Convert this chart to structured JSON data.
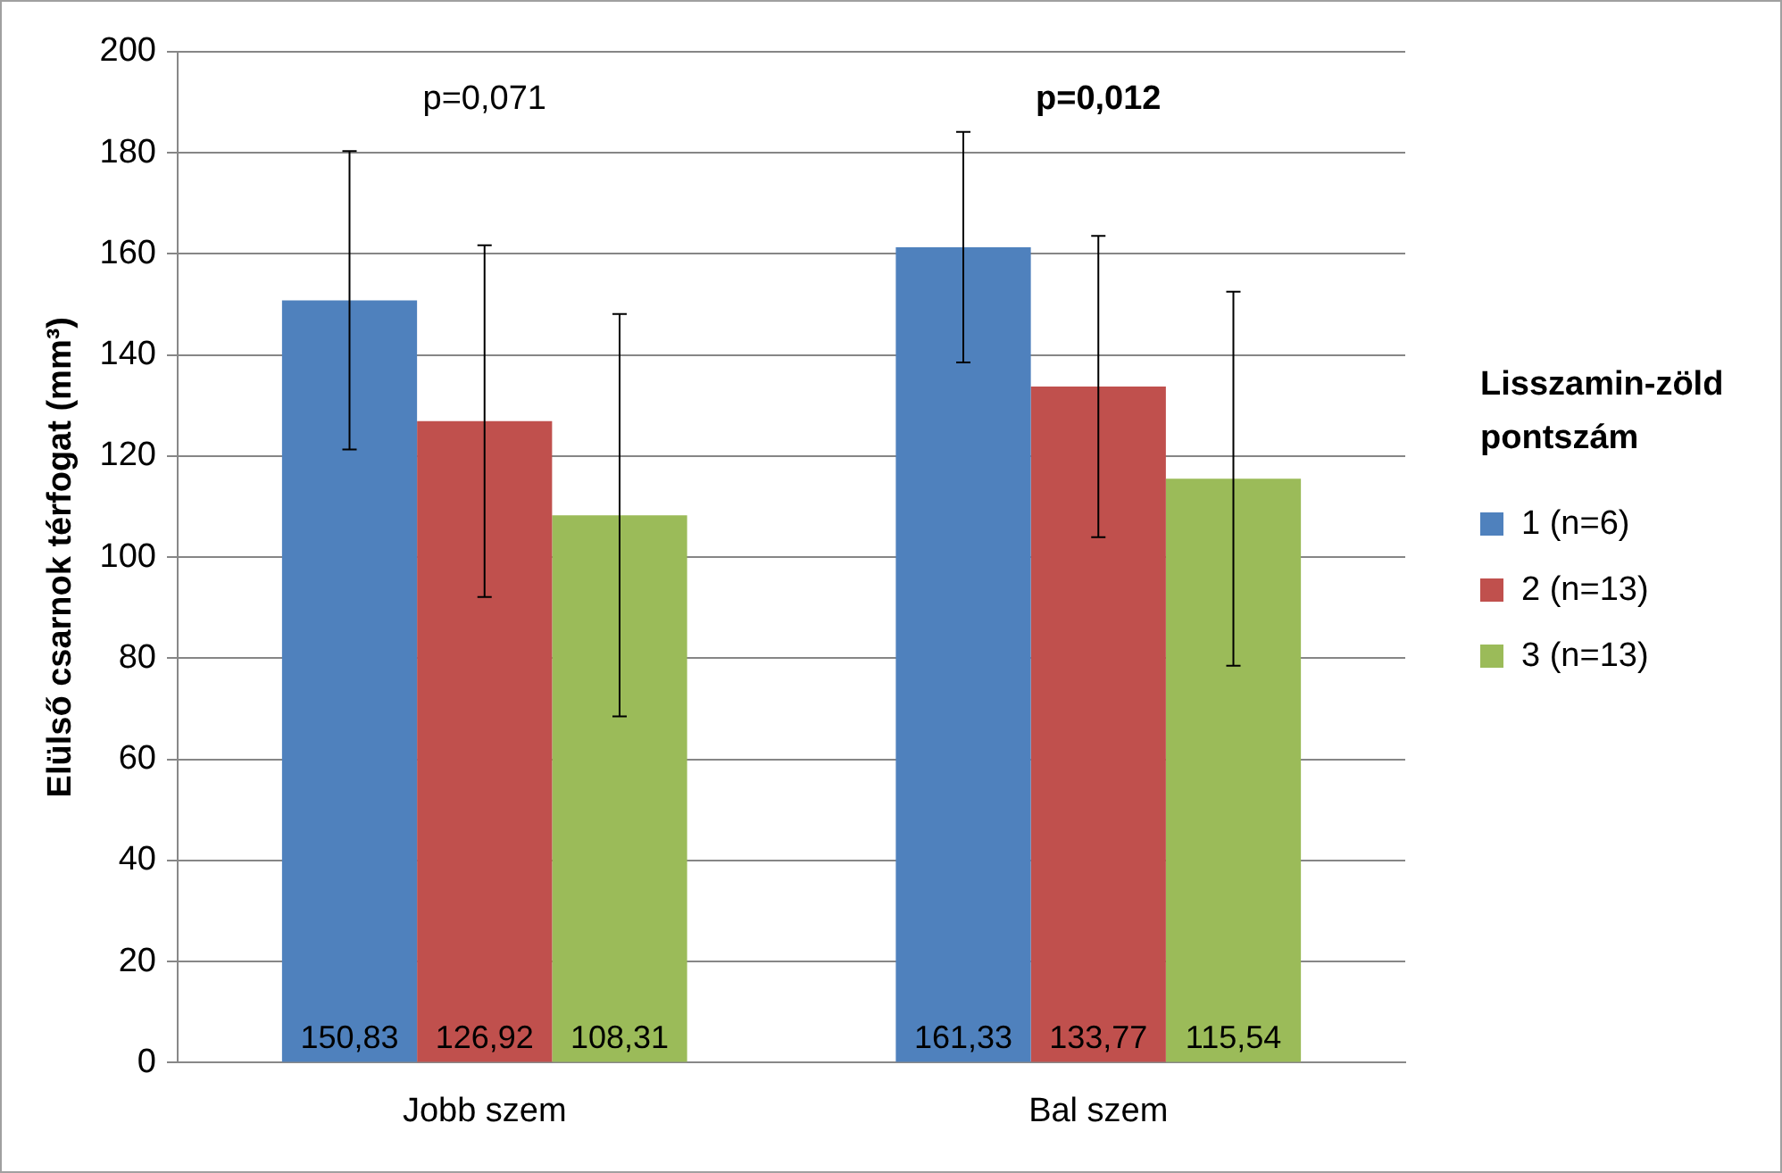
{
  "chart_data": {
    "type": "bar",
    "ylabel": "Elülső csarnok térfogat (mm³)",
    "legend_title": "Lisszamin-zöld pontszám",
    "categories": [
      "Jobb szem",
      "Bal szem"
    ],
    "series": [
      {
        "name": "1 (n=6)",
        "color": "#4f81bd",
        "values": [
          150.83,
          161.33
        ],
        "errors": [
          29.5,
          22.8
        ],
        "value_labels": [
          "150,83",
          "161,33"
        ]
      },
      {
        "name": "2 (n=13)",
        "color": "#c0504d",
        "values": [
          126.92,
          133.77
        ],
        "errors": [
          34.8,
          29.8
        ],
        "value_labels": [
          "126,92",
          "133,77"
        ]
      },
      {
        "name": "3 (n=13)",
        "color": "#9bbb59",
        "values": [
          108.31,
          115.54
        ],
        "errors": [
          39.8,
          37
        ],
        "value_labels": [
          "108,31",
          "115,54"
        ]
      }
    ],
    "ylim": [
      0,
      200
    ],
    "yticks": [
      0,
      20,
      40,
      60,
      80,
      100,
      120,
      140,
      160,
      180,
      200
    ],
    "grid": "y",
    "legend": "right",
    "annotations": [
      "p=0,071",
      "p=0,012"
    ]
  }
}
